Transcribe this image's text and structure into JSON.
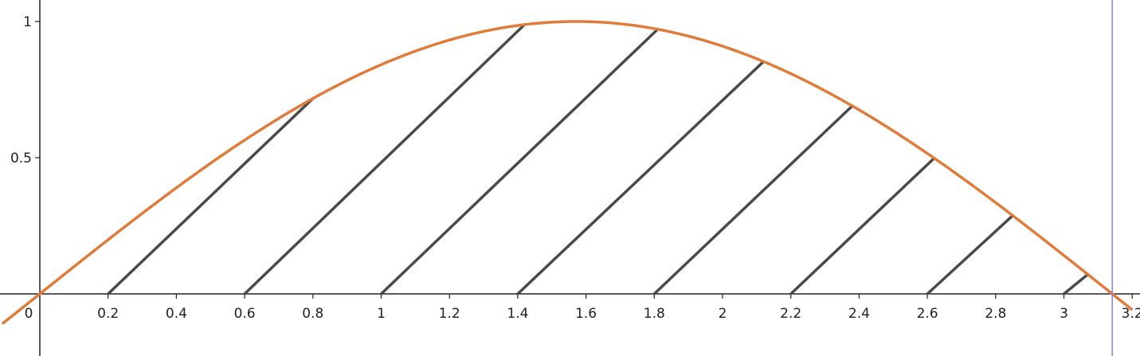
{
  "chart_data": {
    "type": "line",
    "title": "",
    "xlabel": "",
    "ylabel": "",
    "xlim": [
      -0.11,
      3.2
    ],
    "ylim": [
      -0.22,
      1.08
    ],
    "grid": false,
    "x_ticks": [
      {
        "value": 0.2,
        "label": "0.2"
      },
      {
        "value": 0.4,
        "label": "0.4"
      },
      {
        "value": 0.6,
        "label": "0.6"
      },
      {
        "value": 0.8,
        "label": "0.8"
      },
      {
        "value": 1,
        "label": "1"
      },
      {
        "value": 1.2,
        "label": "1.2"
      },
      {
        "value": 1.4,
        "label": "1.4"
      },
      {
        "value": 1.6,
        "label": "1.6"
      },
      {
        "value": 1.8,
        "label": "1.8"
      },
      {
        "value": 2,
        "label": "2"
      },
      {
        "value": 2.2,
        "label": "2.2"
      },
      {
        "value": 2.4,
        "label": "2.4"
      },
      {
        "value": 2.6,
        "label": "2.6"
      },
      {
        "value": 2.8,
        "label": "2.8"
      },
      {
        "value": 3,
        "label": "3"
      },
      {
        "value": 3.2,
        "label": "3.2"
      }
    ],
    "y_ticks": [
      {
        "value": 0.5,
        "label": "0.5"
      },
      {
        "value": 1,
        "label": "1"
      }
    ],
    "origin_label": "0",
    "series": [
      {
        "function": "sin(x)",
        "color": "#e07b39",
        "x_range": [
          -0.11,
          3.2
        ]
      }
    ],
    "vertical_line": {
      "x": 3.14159,
      "color": "#8080f0"
    },
    "hatch_segments": {
      "color": "#4a4a4a",
      "segments": [
        {
          "x_start": 0.2,
          "x_end": 0.8
        },
        {
          "x_start": 0.6,
          "x_end": 1.42
        },
        {
          "x_start": 1.0,
          "x_end": 1.81
        },
        {
          "x_start": 1.4,
          "x_end": 2.12
        },
        {
          "x_start": 1.8,
          "x_end": 2.38
        },
        {
          "x_start": 2.2,
          "x_end": 2.62
        },
        {
          "x_start": 2.6,
          "x_end": 2.85
        },
        {
          "x_start": 3.0,
          "x_end": 3.07
        }
      ]
    }
  }
}
